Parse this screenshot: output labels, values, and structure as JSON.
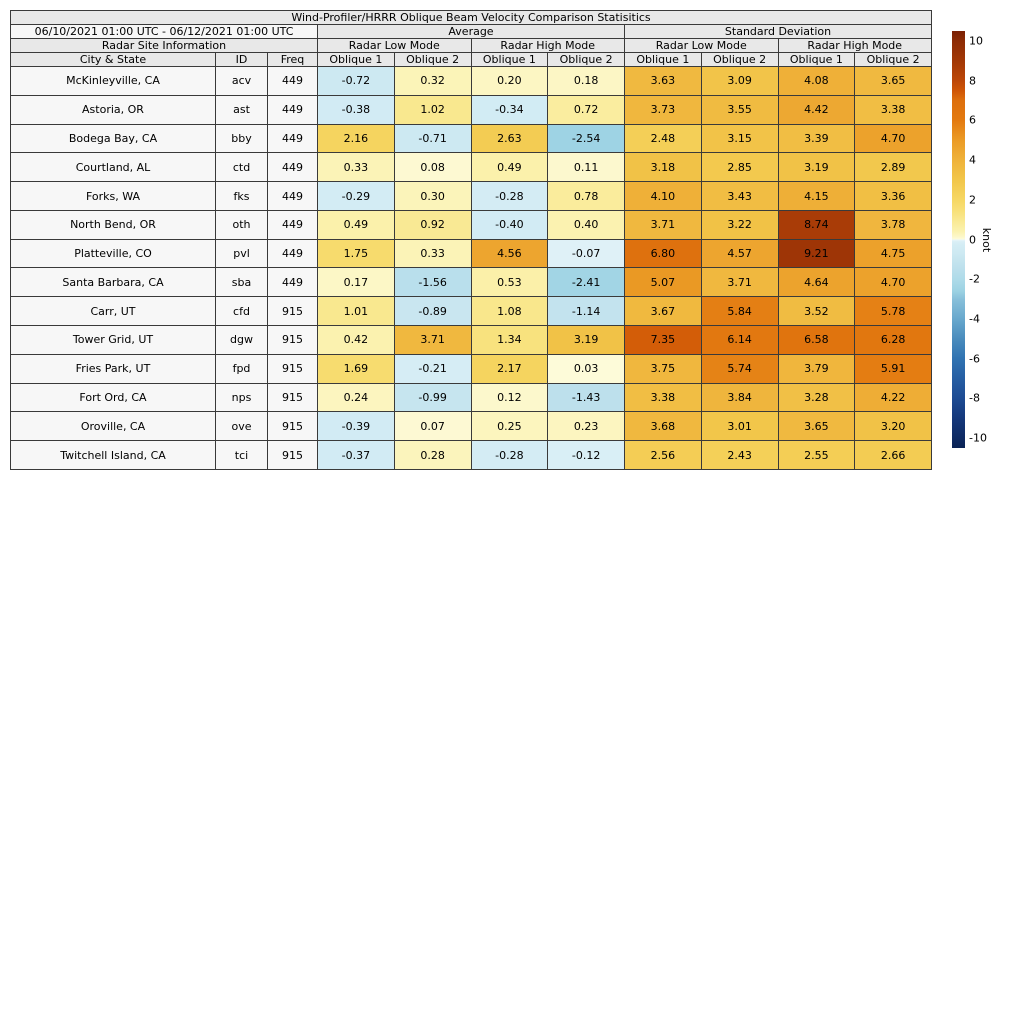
{
  "chart_data": {
    "type": "heatmap",
    "title": "Wind-Profiler/HRRR Oblique Beam Velocity Comparison Statisitics",
    "header": {
      "date_range": "06/10/2021 01:00 UTC - 06/12/2021 01:00 UTC",
      "group_average": "Average",
      "group_std_dev": "Standard Deviation",
      "radar_site_info": "Radar Site Information",
      "mode_labels": [
        "Radar Low Mode",
        "Radar High Mode",
        "Radar Low Mode",
        "Radar High Mode"
      ],
      "col_city": "City & State",
      "col_id": "ID",
      "col_freq": "Freq",
      "oblique_labels": [
        "Oblique 1",
        "Oblique 2"
      ]
    },
    "rows": [
      {
        "city": "McKinleyville, CA",
        "id": "acv",
        "freq": "449",
        "values": [
          "-0.72",
          "0.32",
          "0.20",
          "0.18",
          "3.63",
          "3.09",
          "4.08",
          "3.65"
        ]
      },
      {
        "city": "Astoria, OR",
        "id": "ast",
        "freq": "449",
        "values": [
          "-0.38",
          "1.02",
          "-0.34",
          "0.72",
          "3.73",
          "3.55",
          "4.42",
          "3.38"
        ]
      },
      {
        "city": "Bodega Bay, CA",
        "id": "bby",
        "freq": "449",
        "values": [
          "2.16",
          "-0.71",
          "2.63",
          "-2.54",
          "2.48",
          "3.15",
          "3.39",
          "4.70"
        ]
      },
      {
        "city": "Courtland, AL",
        "id": "ctd",
        "freq": "449",
        "values": [
          "0.33",
          "0.08",
          "0.49",
          "0.11",
          "3.18",
          "2.85",
          "3.19",
          "2.89"
        ]
      },
      {
        "city": "Forks, WA",
        "id": "fks",
        "freq": "449",
        "values": [
          "-0.29",
          "0.30",
          "-0.28",
          "0.78",
          "4.10",
          "3.43",
          "4.15",
          "3.36"
        ]
      },
      {
        "city": "North Bend, OR",
        "id": "oth",
        "freq": "449",
        "values": [
          "0.49",
          "0.92",
          "-0.40",
          "0.40",
          "3.71",
          "3.22",
          "8.74",
          "3.78"
        ]
      },
      {
        "city": "Platteville, CO",
        "id": "pvl",
        "freq": "449",
        "values": [
          "1.75",
          "0.33",
          "4.56",
          "-0.07",
          "6.80",
          "4.57",
          "9.21",
          "4.75"
        ]
      },
      {
        "city": "Santa Barbara, CA",
        "id": "sba",
        "freq": "449",
        "values": [
          "0.17",
          "-1.56",
          "0.53",
          "-2.41",
          "5.07",
          "3.71",
          "4.64",
          "4.70"
        ]
      },
      {
        "city": "Carr, UT",
        "id": "cfd",
        "freq": "915",
        "values": [
          "1.01",
          "-0.89",
          "1.08",
          "-1.14",
          "3.67",
          "5.84",
          "3.52",
          "5.78"
        ]
      },
      {
        "city": "Tower Grid, UT",
        "id": "dgw",
        "freq": "915",
        "values": [
          "0.42",
          "3.71",
          "1.34",
          "3.19",
          "7.35",
          "6.14",
          "6.58",
          "6.28"
        ]
      },
      {
        "city": "Fries Park, UT",
        "id": "fpd",
        "freq": "915",
        "values": [
          "1.69",
          "-0.21",
          "2.17",
          "0.03",
          "3.75",
          "5.74",
          "3.79",
          "5.91"
        ]
      },
      {
        "city": "Fort Ord, CA",
        "id": "nps",
        "freq": "915",
        "values": [
          "0.24",
          "-0.99",
          "0.12",
          "-1.43",
          "3.38",
          "3.84",
          "3.28",
          "4.22"
        ]
      },
      {
        "city": "Oroville, CA",
        "id": "ove",
        "freq": "915",
        "values": [
          "-0.39",
          "0.07",
          "0.25",
          "0.23",
          "3.68",
          "3.01",
          "3.65",
          "3.20"
        ]
      },
      {
        "city": "Twitchell Island, CA",
        "id": "tci",
        "freq": "915",
        "values": [
          "-0.37",
          "0.28",
          "-0.28",
          "-0.12",
          "2.56",
          "2.43",
          "2.55",
          "2.66"
        ]
      }
    ],
    "colorbar": {
      "label": "knot",
      "vmin": -10.5,
      "vmax": 10.5,
      "ticks": [
        10,
        8,
        6,
        4,
        2,
        0,
        -2,
        -4,
        -6,
        -8,
        -10
      ],
      "stops": [
        [
          10.5,
          "#7a2004"
        ],
        [
          10,
          "#8d2c05"
        ],
        [
          9,
          "#a23806"
        ],
        [
          8,
          "#bc4708"
        ],
        [
          7.5,
          "#cf5506"
        ],
        [
          7,
          "#dd6f0d"
        ],
        [
          6,
          "#e37a10"
        ],
        [
          5,
          "#eb9b26"
        ],
        [
          4,
          "#efb23a"
        ],
        [
          3,
          "#f2c64a"
        ],
        [
          2,
          "#f6d763"
        ],
        [
          1.5,
          "#f8df76"
        ],
        [
          1,
          "#f9e890"
        ],
        [
          0.7,
          "#faeda0"
        ],
        [
          0.4,
          "#fbf2b0"
        ],
        [
          0.15,
          "#fcf7c8"
        ],
        [
          0.02,
          "#fdfbda"
        ],
        [
          -0.02,
          "#e8f5f9"
        ],
        [
          -0.1,
          "#daeff6"
        ],
        [
          -0.3,
          "#d3ecf4"
        ],
        [
          -0.7,
          "#cde9f2"
        ],
        [
          -1,
          "#c6e5ef"
        ],
        [
          -1.5,
          "#bbdfec"
        ],
        [
          -2,
          "#aedbe9"
        ],
        [
          -2.6,
          "#9cd2e3"
        ],
        [
          -3,
          "#88c0da"
        ],
        [
          -4,
          "#68a8cd"
        ],
        [
          -5,
          "#4a8cbd"
        ],
        [
          -6,
          "#3073b2"
        ],
        [
          -7,
          "#265ea3"
        ],
        [
          -8,
          "#1d4b93"
        ],
        [
          -9,
          "#15387b"
        ],
        [
          -10,
          "#0e2a63"
        ],
        [
          -10.5,
          "#0a2254"
        ]
      ]
    },
    "style": {
      "header_bg": "#e8e8e8",
      "label_bg": "#f7f7f7",
      "border": "#3a3a3a",
      "text": "#000000",
      "background": "#ffffff"
    }
  }
}
